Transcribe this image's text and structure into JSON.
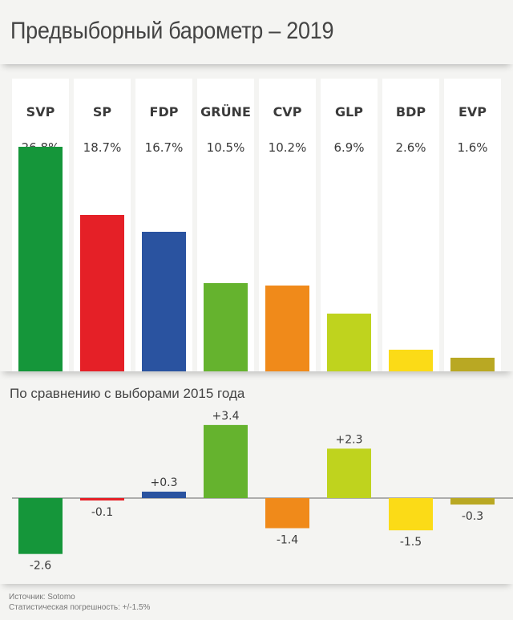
{
  "header": {
    "title": "Предвыборный барометр – 2019"
  },
  "subtitle": "По сравнению с выборами 2015 года",
  "footer": {
    "source": "Источник: Sotomo",
    "error_margin": "Статистическая погрешность: +/-1.5%"
  },
  "chart_data": [
    {
      "type": "bar",
      "title": "Предвыборный барометр – 2019",
      "categories": [
        "SVP",
        "SP",
        "FDP",
        "GRÜNE",
        "CVP",
        "GLP",
        "BDP",
        "EVP"
      ],
      "values": [
        26.8,
        18.7,
        16.7,
        10.5,
        10.2,
        6.9,
        2.6,
        1.6
      ],
      "value_labels": [
        "26.8%",
        "18.7%",
        "16.7%",
        "10.5%",
        "10.2%",
        "6.9%",
        "2.6%",
        "1.6%"
      ],
      "colors": [
        "#15963a",
        "#e52027",
        "#2a53a0",
        "#65b32e",
        "#f08a1a",
        "#bfd31e",
        "#fbdb17",
        "#b9a823"
      ],
      "unit": "%",
      "ylim": [
        0,
        26.8
      ],
      "grid": false,
      "legend": "none"
    },
    {
      "type": "bar",
      "title": "По сравнению с выборами 2015 года",
      "categories": [
        "SVP",
        "SP",
        "FDP",
        "GRÜNE",
        "CVP",
        "GLP",
        "BDP",
        "EVP"
      ],
      "values": [
        -2.6,
        -0.1,
        0.3,
        3.4,
        -1.4,
        2.3,
        -1.5,
        -0.3
      ],
      "value_labels": [
        "-2.6",
        "-0.1",
        "+0.3",
        "+3.4",
        "-1.4",
        "+2.3",
        "-1.5",
        "-0.3"
      ],
      "colors": [
        "#15963a",
        "#e52027",
        "#2a53a0",
        "#65b32e",
        "#f08a1a",
        "#bfd31e",
        "#fbdb17",
        "#b9a823"
      ],
      "ylim": [
        -2.6,
        3.4
      ],
      "grid": false,
      "legend": "none"
    }
  ]
}
